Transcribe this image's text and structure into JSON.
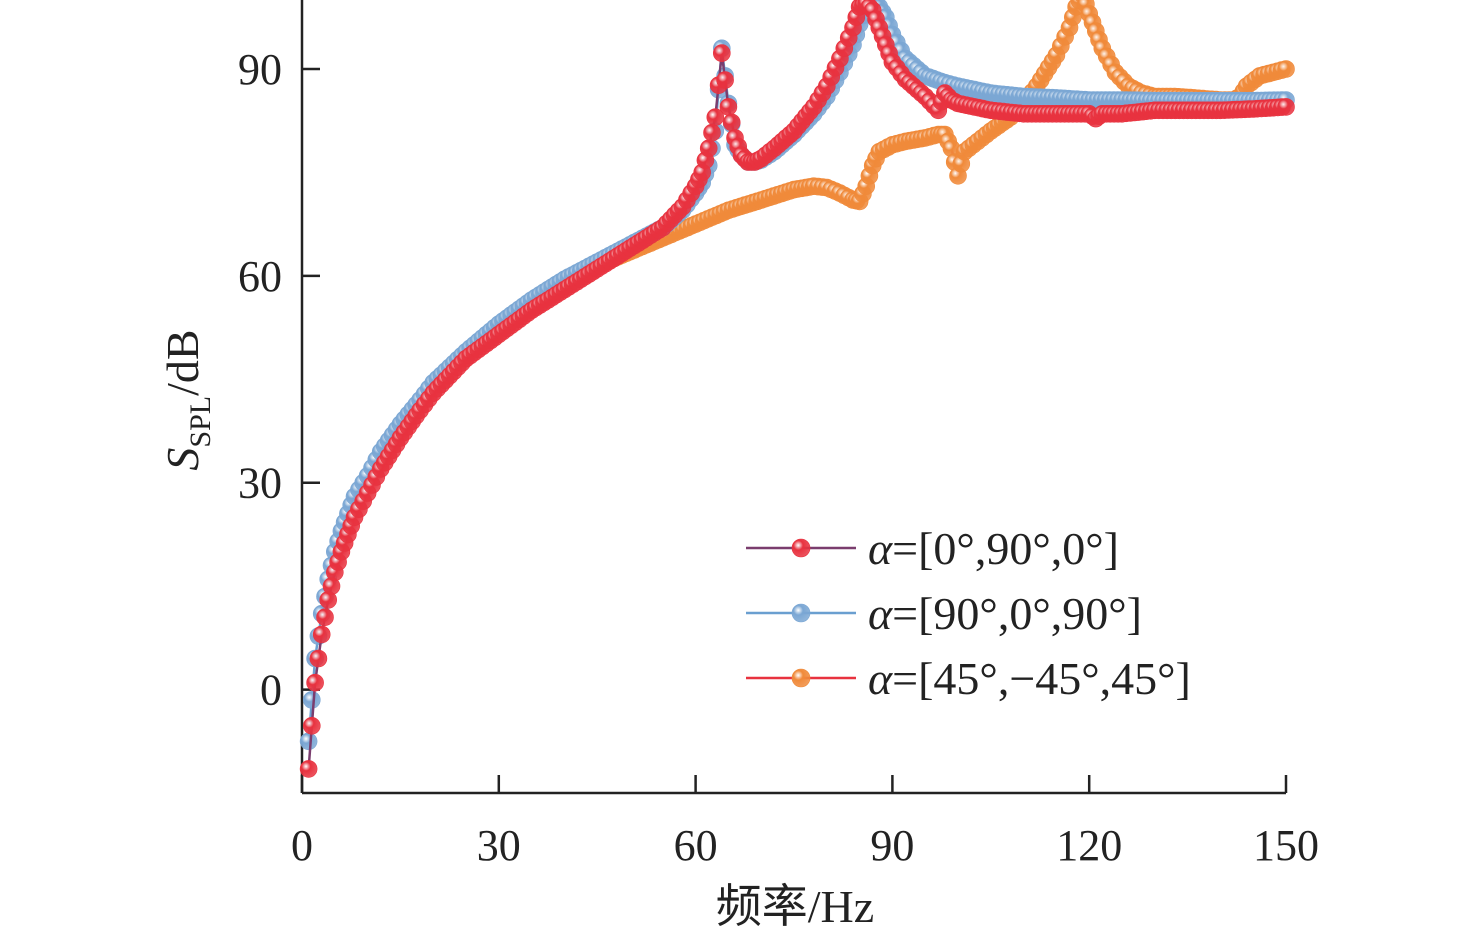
{
  "chart_data": {
    "type": "line",
    "title": "",
    "xlabel": "频率/Hz",
    "ylabel": {
      "main": "S",
      "sub": "SPL",
      "unit": "/dB"
    },
    "xlim": [
      0,
      150
    ],
    "ylim": [
      -15,
      100
    ],
    "xticks": [
      0,
      30,
      60,
      90,
      120,
      150
    ],
    "yticks": [
      0,
      30,
      60,
      90
    ],
    "grid": false,
    "legend_position": "bottom-right",
    "series": [
      {
        "name": "α=[0°,90°,0°]",
        "legend_prefix": "α",
        "legend_rest": "=[0°,90°,0°]",
        "line_color": "#7a3d6e",
        "marker_color": "#e8323f",
        "x": [
          1,
          2,
          3,
          4,
          5,
          6,
          7,
          8,
          10,
          12,
          15,
          18,
          20,
          25,
          30,
          35,
          40,
          45,
          50,
          55,
          58,
          60,
          61,
          62,
          63,
          64,
          65,
          66,
          67,
          68,
          69,
          70,
          72,
          75,
          78,
          80,
          82,
          84,
          85,
          86,
          87,
          88,
          89,
          90,
          92,
          95,
          97,
          98,
          99,
          100,
          105,
          110,
          115,
          120,
          121,
          122,
          125,
          130,
          135,
          140,
          145,
          150
        ],
        "y": [
          -11.5,
          1,
          8,
          13,
          17,
          20,
          22.5,
          25,
          28.5,
          32,
          36.5,
          40.5,
          43,
          48,
          51.5,
          55,
          58,
          61,
          64,
          67,
          70,
          73,
          75,
          78.5,
          83,
          92.3,
          84.5,
          80,
          77.5,
          76.5,
          76.5,
          77,
          78.5,
          81,
          84.5,
          87.5,
          91.5,
          96,
          99,
          99.5,
          98.5,
          96,
          93.5,
          91,
          88.5,
          86,
          84,
          86.5,
          85.5,
          85,
          84,
          83.5,
          83.5,
          83.5,
          82.8,
          83.5,
          83.5,
          84,
          84,
          84,
          84.2,
          84.5
        ]
      },
      {
        "name": "α=[90°,0°,90°]",
        "legend_prefix": "α",
        "legend_rest": "=[90°,0°,90°]",
        "line_color": "#6a9fd0",
        "marker_color": "#7ba7d4",
        "x": [
          1,
          2,
          3,
          4,
          5,
          6,
          7,
          8,
          10,
          12,
          15,
          18,
          20,
          25,
          30,
          35,
          40,
          45,
          50,
          55,
          58,
          60,
          61,
          62,
          63,
          64,
          65,
          66,
          67,
          68,
          69,
          70,
          72,
          75,
          78,
          80,
          82,
          84,
          85,
          86,
          87,
          88,
          89,
          90,
          92,
          95,
          98,
          100,
          105,
          110,
          115,
          120,
          125,
          130,
          135,
          140,
          145,
          150
        ],
        "y": [
          -7.5,
          4.5,
          11,
          16,
          20,
          23,
          25.5,
          28,
          31,
          34.5,
          38.5,
          42,
          44.5,
          49,
          53,
          56.5,
          59.5,
          62,
          64.5,
          67,
          69.5,
          72,
          73.5,
          76,
          81,
          93,
          85,
          79,
          77.5,
          76.5,
          76.5,
          76.8,
          78,
          80.5,
          83.5,
          86,
          89.5,
          93.5,
          96.5,
          99,
          100,
          99,
          97.5,
          95,
          91.5,
          89,
          88,
          87.5,
          86.5,
          86,
          85.8,
          85.5,
          85.5,
          85.4,
          85.4,
          85.4,
          85.4,
          85.5
        ]
      },
      {
        "name": "α=[45°,−45°,45°]",
        "legend_prefix": "α",
        "legend_rest": "=[45°,−45°,45°]",
        "line_color": "#e8323f",
        "marker_color": "#f08a3a",
        "x": [
          40,
          45,
          50,
          55,
          60,
          65,
          70,
          75,
          78,
          80,
          82,
          84,
          85,
          86,
          87,
          88,
          90,
          92,
          95,
          97,
          98,
          99,
          100,
          101,
          103,
          105,
          108,
          110,
          112,
          115,
          117,
          118,
          119,
          120,
          121,
          122,
          124,
          126,
          128,
          130,
          133,
          136,
          140,
          142,
          143,
          144,
          146,
          148,
          150
        ],
        "y": [
          59,
          61.5,
          63.5,
          65.5,
          67.5,
          69.5,
          71,
          72.5,
          73,
          72.8,
          72,
          71,
          70.8,
          73,
          76,
          78,
          79,
          79.5,
          80,
          80.5,
          80.5,
          78.5,
          74.5,
          78,
          79.5,
          81,
          83,
          85,
          87.5,
          92,
          96,
          99,
          100.8,
          98,
          95.5,
          93,
          89.5,
          87.5,
          86.5,
          86,
          86,
          85.8,
          85.5,
          85.5,
          86,
          87.5,
          89,
          89.5,
          90
        ]
      }
    ]
  }
}
